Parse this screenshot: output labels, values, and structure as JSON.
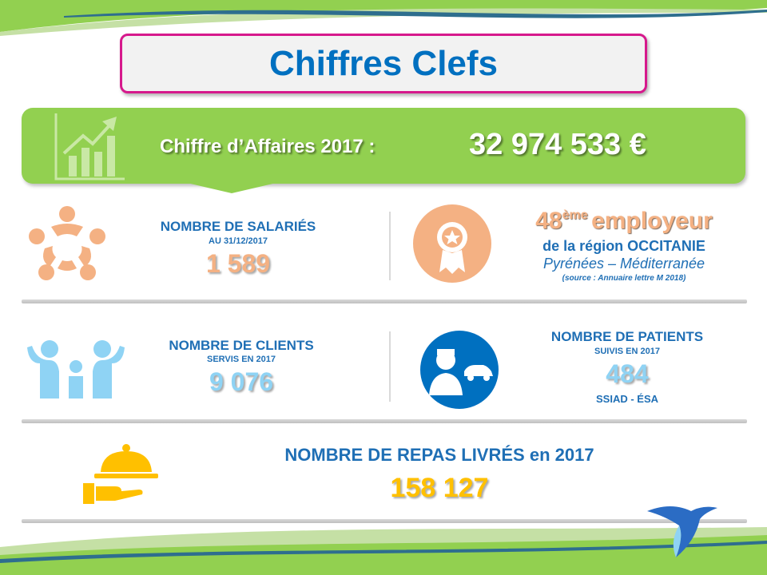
{
  "title": "Chiffres Clefs",
  "revenue": {
    "label": "Chiffre d’Affaires 2017  :",
    "value": "32 974 533 €"
  },
  "employees": {
    "label": "NOMBRE DE SALARIÉS",
    "sub": "AU 31/12/2017",
    "value": "1 589"
  },
  "ranking": {
    "rank": "48",
    "suffix": "ème",
    "word": "employeur",
    "region": "de la région OCCITANIE",
    "subregion": "Pyrénées – Méditerranée",
    "source": "(source : Annuaire lettre M 2018)"
  },
  "clients": {
    "label": "NOMBRE DE CLIENTS",
    "sub": "SERVIS  EN 2017",
    "value": "9 076"
  },
  "patients": {
    "label": "NOMBRE DE PATIENTS",
    "sub": "SUIVIS  EN 2017",
    "value": "484",
    "services": "SSIAD - ÉSA"
  },
  "meals": {
    "label": "NOMBRE DE REPAS LIVRÉS en 2017",
    "value": "158 127"
  },
  "colors": {
    "blue": "#1f6fb5",
    "green": "#92d050",
    "pink": "#d6198c",
    "peach": "#f4b183",
    "lightblue": "#8fd3f4",
    "yellow": "#ffc000"
  }
}
